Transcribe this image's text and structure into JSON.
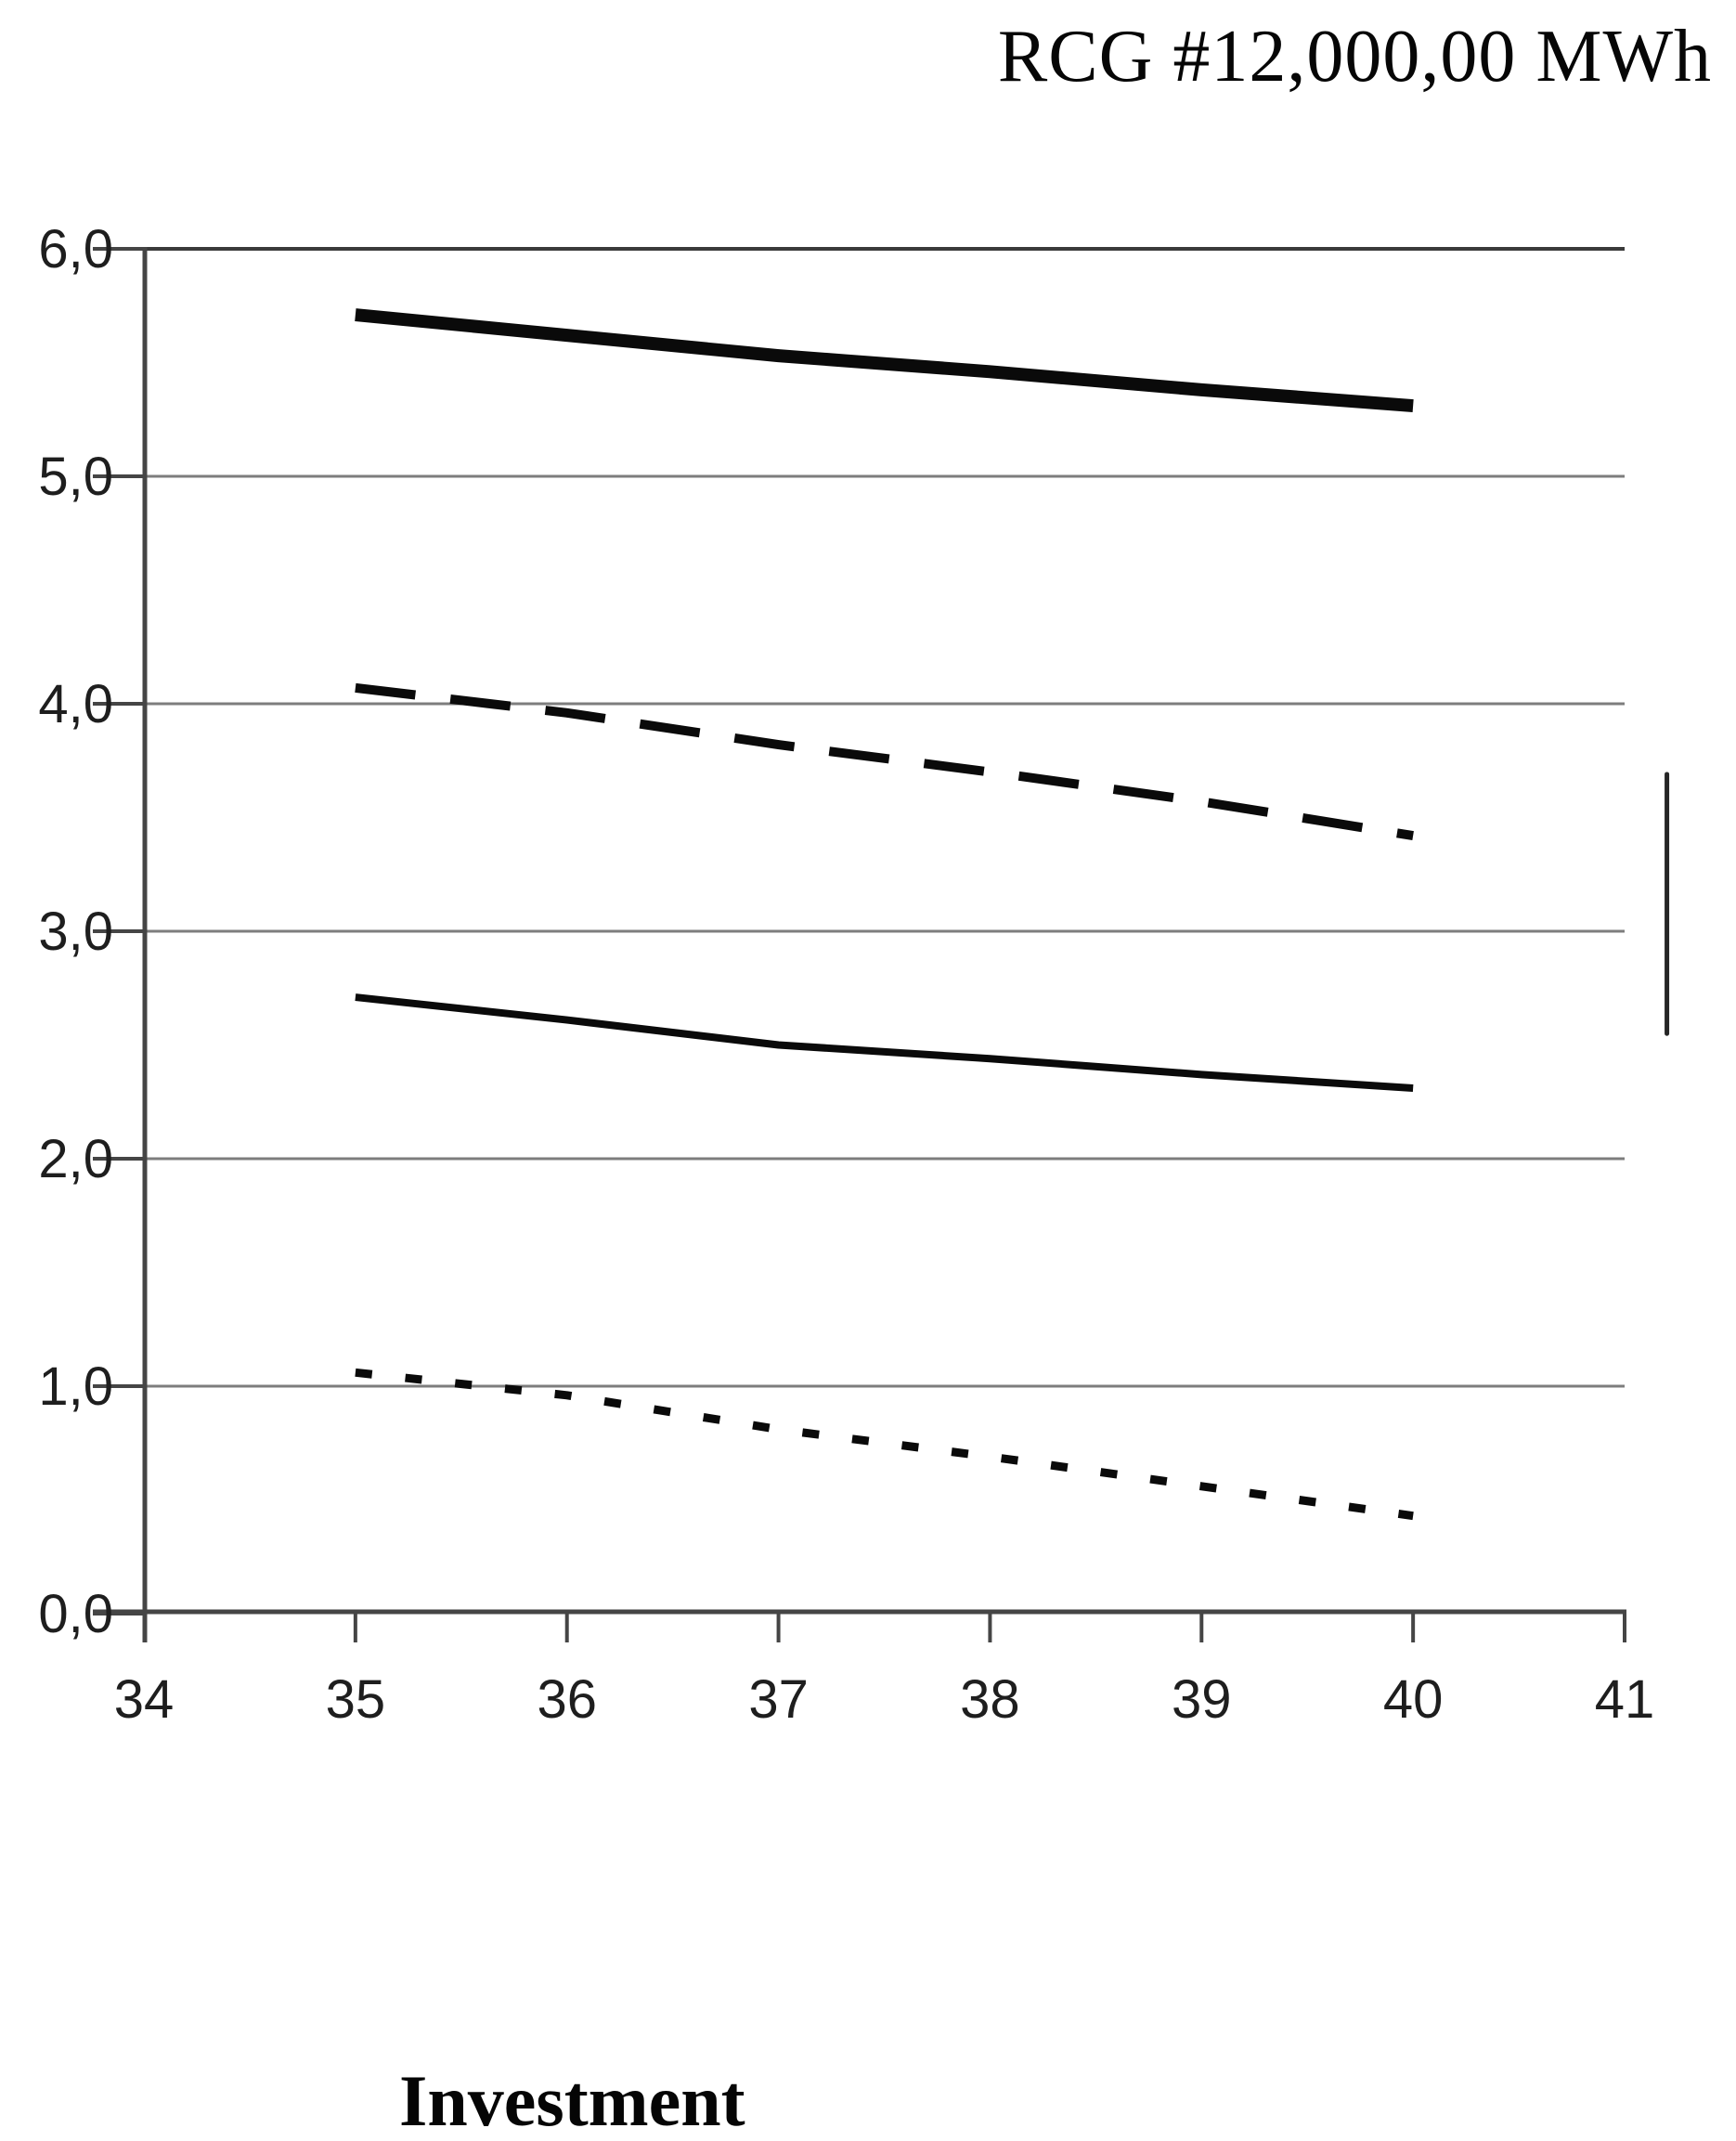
{
  "page": {
    "background": "#ffffff"
  },
  "header": {
    "title": "RCG #12,000,00 MWh"
  },
  "footer": {
    "xlabel": "Investment"
  },
  "chart_data": {
    "type": "line",
    "title": "RCG #12,000,00 MWh",
    "xlabel": "Investment",
    "ylabel": "",
    "xlim": [
      34,
      41
    ],
    "ylim": [
      0,
      6
    ],
    "grid": true,
    "legend": false,
    "x_tick_values": [
      34,
      35,
      36,
      37,
      38,
      39,
      40,
      41
    ],
    "x_tick_labels": [
      "34",
      "35",
      "36",
      "37",
      "38",
      "39",
      "40",
      "41"
    ],
    "y_tick_values": [
      0,
      1,
      2,
      3,
      4,
      5,
      6
    ],
    "y_tick_labels": [
      "0,0",
      "1,0",
      "2,0",
      "3,0",
      "4,0",
      "5,0",
      "6,0"
    ],
    "x": [
      35,
      36,
      37,
      38,
      39,
      40
    ],
    "series": [
      {
        "name": "line-thick-solid",
        "style": "solid",
        "stroke_width": 14,
        "values": [
          5.71,
          5.62,
          5.53,
          5.46,
          5.38,
          5.31
        ]
      },
      {
        "name": "line-long-dash",
        "style": "dashed",
        "stroke_width": 10,
        "dash": [
          65,
          38
        ],
        "values": [
          4.07,
          3.96,
          3.82,
          3.7,
          3.57,
          3.42
        ]
      },
      {
        "name": "line-thin-solid",
        "style": "solid",
        "stroke_width": 8,
        "values": [
          2.71,
          2.61,
          2.5,
          2.44,
          2.37,
          2.31
        ]
      },
      {
        "name": "line-dotted",
        "style": "dotted",
        "stroke_width": 9,
        "dash": [
          18,
          36
        ],
        "values": [
          1.06,
          0.96,
          0.81,
          0.69,
          0.56,
          0.43
        ]
      }
    ],
    "right_marker_segment": {
      "x_value": 41.2,
      "y_top": 3.69,
      "y_bottom": 2.55
    },
    "colors": {
      "line": "#0a0a0a",
      "grid": "#7d7d7d",
      "top_grid": "#3a3a3a",
      "axis": "#454545",
      "tick_label": "#1e1e1e"
    }
  }
}
